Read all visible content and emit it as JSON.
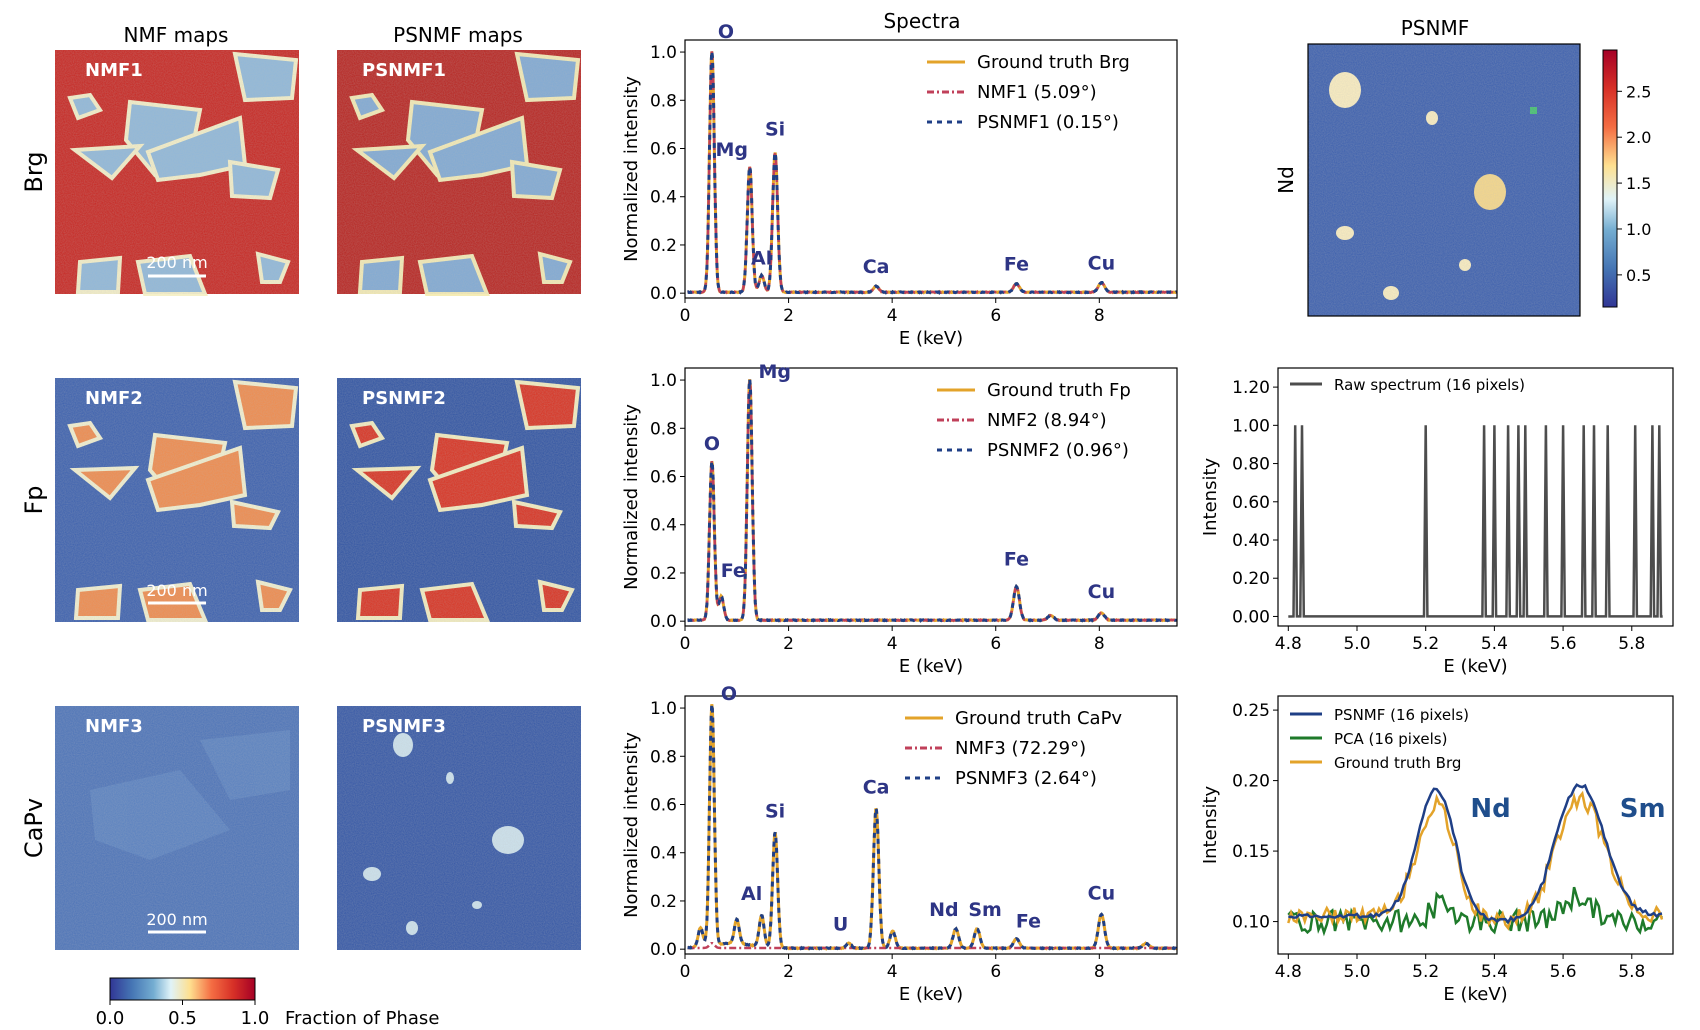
{
  "colors": {
    "truth": "#E3A32A",
    "nmf": "#C0405A",
    "psnmf": "#1F3F86",
    "peak_label": "#2E3585",
    "raw": "#4D4D4D",
    "pca": "#1E7A2A",
    "nd_sm_label": "#1F4E8C"
  },
  "headers": {
    "nmf_maps": "NMF maps",
    "psnmf_maps": "PSNMF maps",
    "spectra": "Spectra",
    "psnmf": "PSNMF"
  },
  "rows": [
    {
      "label": "Brg",
      "nmf_map": "NMF1",
      "psnmf_map": "PSNMF1",
      "fraction": 0.75
    },
    {
      "label": "Fp",
      "nmf_map": "NMF2",
      "psnmf_map": "PSNMF2",
      "fraction": 0.25
    },
    {
      "label": "CaPv",
      "nmf_map": "NMF3",
      "psnmf_map": "PSNMF3",
      "fraction": 0.1
    }
  ],
  "scalebar": "200 nm",
  "map_colorbar": {
    "ticks": [
      "0.0",
      "0.5",
      "1.0"
    ],
    "label": "Fraction of Phase"
  },
  "nd_map": {
    "ylabel": "Nd",
    "colorbar_ticks": [
      "2.5",
      "2.0",
      "1.5",
      "1.0",
      "0.5"
    ],
    "colorbar_range": [
      0.15,
      2.95
    ]
  },
  "chart_data": [
    {
      "type": "line",
      "title": "Spectra",
      "xlabel": "E (keV)",
      "ylabel": "Normalized intensity",
      "xlim": [
        0,
        9.5
      ],
      "ylim": [
        -0.02,
        1.05
      ],
      "xticks": [
        "0",
        "2",
        "4",
        "6",
        "8"
      ],
      "yticks": [
        "0.0",
        "0.2",
        "0.4",
        "0.6",
        "0.8",
        "1.0"
      ],
      "legend": [
        "Ground truth Brg",
        "NMF1 (5.09°)",
        "PSNMF1 (0.15°)"
      ],
      "peaks": [
        [
          0.52,
          1.0
        ],
        [
          1.25,
          0.52
        ],
        [
          1.48,
          0.07
        ],
        [
          1.74,
          0.58
        ],
        [
          3.69,
          0.025
        ],
        [
          6.4,
          0.035
        ],
        [
          8.04,
          0.04
        ]
      ],
      "peak_labels": [
        {
          "text": "O",
          "x": 0.52,
          "y": 1.0
        },
        {
          "text": "Mg",
          "x": 1.25,
          "y": 0.52
        },
        {
          "text": "Si",
          "x": 1.74,
          "y": 0.58
        },
        {
          "text": "Al",
          "x": 1.48,
          "y": 0.07
        },
        {
          "text": "Ca",
          "x": 3.69,
          "y": 0.025
        },
        {
          "text": "Fe",
          "x": 6.4,
          "y": 0.035
        },
        {
          "text": "Cu",
          "x": 8.04,
          "y": 0.04
        }
      ]
    },
    {
      "type": "line",
      "xlabel": "E (keV)",
      "ylabel": "Normalized intensity",
      "xlim": [
        0,
        9.5
      ],
      "ylim": [
        -0.02,
        1.05
      ],
      "xticks": [
        "0",
        "2",
        "4",
        "6",
        "8"
      ],
      "yticks": [
        "0.0",
        "0.2",
        "0.4",
        "0.6",
        "0.8",
        "1.0"
      ],
      "legend": [
        "Ground truth Fp",
        "NMF2 (8.94°)",
        "PSNMF2 (0.96°)"
      ],
      "peaks": [
        [
          0.52,
          0.66
        ],
        [
          0.7,
          0.1
        ],
        [
          1.25,
          1.0
        ],
        [
          6.4,
          0.14
        ],
        [
          7.06,
          0.02
        ],
        [
          8.04,
          0.03
        ]
      ],
      "peak_labels": [
        {
          "text": "Mg",
          "x": 1.25,
          "y": 1.0
        },
        {
          "text": "O",
          "x": 0.52,
          "y": 0.66
        },
        {
          "text": "Fe",
          "x": 0.7,
          "y": 0.1
        },
        {
          "text": "Fe",
          "x": 6.4,
          "y": 0.14
        },
        {
          "text": "Cu",
          "x": 8.04,
          "y": 0.03
        }
      ]
    },
    {
      "type": "line",
      "xlabel": "E (keV)",
      "ylabel": "Normalized intensity",
      "xlim": [
        0,
        9.5
      ],
      "ylim": [
        -0.02,
        1.05
      ],
      "xticks": [
        "0",
        "2",
        "4",
        "6",
        "8"
      ],
      "yticks": [
        "0.0",
        "0.2",
        "0.4",
        "0.6",
        "0.8",
        "1.0"
      ],
      "legend": [
        "Ground truth CaPv",
        "NMF3 (72.29°)",
        "PSNMF3 (2.64°)"
      ],
      "peaks": [
        [
          0.52,
          1.0
        ],
        [
          0.3,
          0.08
        ],
        [
          1.0,
          0.1
        ],
        [
          1.48,
          0.13
        ],
        [
          1.74,
          0.48
        ],
        [
          3.69,
          0.58
        ],
        [
          4.01,
          0.07
        ],
        [
          3.16,
          0.02
        ],
        [
          5.23,
          0.08
        ],
        [
          5.64,
          0.08
        ],
        [
          6.4,
          0.04
        ],
        [
          8.04,
          0.14
        ],
        [
          8.9,
          0.02
        ]
      ],
      "peak_labels": [
        {
          "text": "O",
          "x": 0.52,
          "y": 1.0
        },
        {
          "text": "Si",
          "x": 1.74,
          "y": 0.48
        },
        {
          "text": "Ca",
          "x": 3.69,
          "y": 0.58
        },
        {
          "text": "Al",
          "x": 1.48,
          "y": 0.13
        },
        {
          "text": "U",
          "x": 3.16,
          "y": 0.02
        },
        {
          "text": "Nd",
          "x": 5.23,
          "y": 0.08
        },
        {
          "text": "Sm",
          "x": 5.64,
          "y": 0.08
        },
        {
          "text": "Fe",
          "x": 6.4,
          "y": 0.04
        },
        {
          "text": "Cu",
          "x": 8.04,
          "y": 0.14
        }
      ]
    },
    {
      "type": "line",
      "xlabel": "E (keV)",
      "ylabel": "Intensity",
      "xlim": [
        4.77,
        5.92
      ],
      "ylim": [
        -0.05,
        1.3
      ],
      "xticks": [
        "4.8",
        "5.0",
        "5.2",
        "5.4",
        "5.6",
        "5.8"
      ],
      "yticks": [
        "0.00",
        "0.20",
        "0.40",
        "0.60",
        "0.80",
        "1.00",
        "1.20"
      ],
      "legend": [
        "Raw spectrum (16 pixels)"
      ],
      "spikes": [
        4.82,
        4.84,
        5.2,
        5.37,
        5.4,
        5.44,
        5.47,
        5.49,
        5.55,
        5.6,
        5.66,
        5.69,
        5.73,
        5.81,
        5.86,
        5.88
      ]
    },
    {
      "type": "line",
      "xlabel": "E (keV)",
      "ylabel": "Intensity",
      "xlim": [
        4.77,
        5.92
      ],
      "ylim": [
        0.077,
        0.26
      ],
      "xticks": [
        "4.8",
        "5.0",
        "5.2",
        "5.4",
        "5.6",
        "5.8"
      ],
      "yticks": [
        "0.10",
        "0.15",
        "0.20",
        "0.25"
      ],
      "legend": [
        "PSNMF (16 pixels)",
        "PCA (16 pixels)",
        "Ground truth Brg"
      ],
      "annotations": [
        "Nd",
        "Sm"
      ],
      "peaks": [
        [
          5.23,
          0.195
        ],
        [
          5.65,
          0.195
        ]
      ]
    }
  ]
}
